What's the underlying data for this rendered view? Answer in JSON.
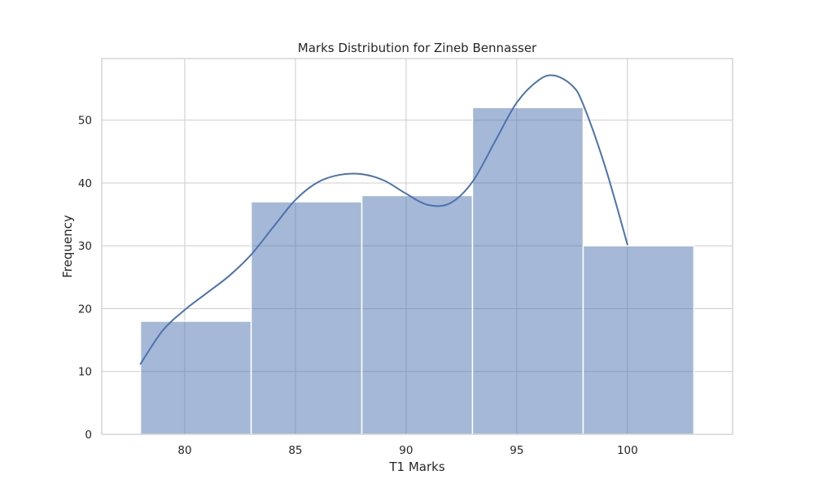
{
  "chart_data": {
    "type": "bar",
    "title": "Marks Distribution for Zineb Bennasser",
    "xlabel": "T1 Marks",
    "ylabel": "Frequency",
    "xlim": [
      76.25,
      104.75
    ],
    "ylim": [
      0,
      59.8
    ],
    "x_ticks": [
      80,
      85,
      90,
      95,
      100
    ],
    "y_ticks": [
      0,
      10,
      20,
      30,
      40,
      50
    ],
    "grid": true,
    "bins": [
      {
        "start": 78,
        "end": 83,
        "count": 18
      },
      {
        "start": 83,
        "end": 88,
        "count": 37
      },
      {
        "start": 88,
        "end": 93,
        "count": 38
      },
      {
        "start": 93,
        "end": 98,
        "count": 52
      },
      {
        "start": 98,
        "end": 103,
        "count": 30
      }
    ],
    "kde_curve": {
      "x": [
        78,
        79,
        80,
        81,
        82,
        83,
        84,
        85,
        86,
        87,
        88,
        89,
        90,
        91,
        92,
        93,
        94,
        95,
        96,
        96.7,
        97.5,
        98,
        99,
        100
      ],
      "y": [
        11.2,
        16.5,
        19.8,
        22.5,
        25.2,
        28.6,
        33,
        37.3,
        40.1,
        41.3,
        41.4,
        40.4,
        38.3,
        36.5,
        36.8,
        40.2,
        46.5,
        52.8,
        56.4,
        57.1,
        55.5,
        52.5,
        42.5,
        30.2
      ]
    },
    "colors": {
      "bar_fill": "#4c72b0",
      "bar_opacity": 0.5,
      "kde_line": "#4c72b0"
    }
  }
}
